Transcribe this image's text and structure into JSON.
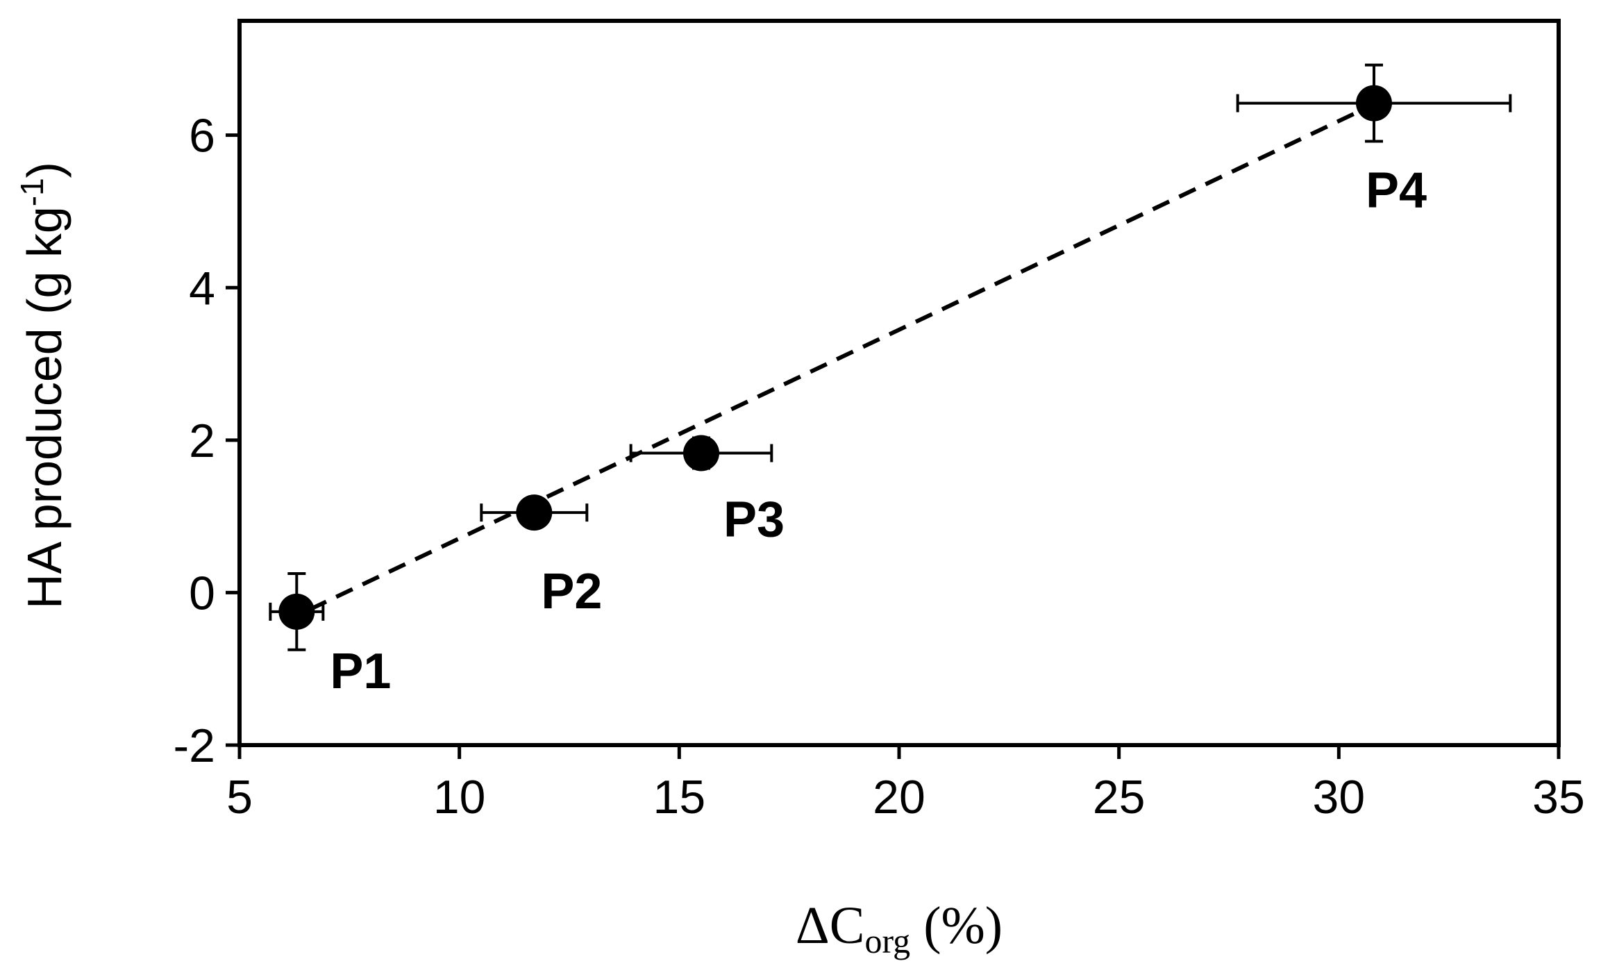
{
  "chart_data": {
    "type": "scatter",
    "xlabel": {
      "prefix": "ΔC",
      "sub": "org",
      "suffix": " (%)"
    },
    "ylabel": {
      "main": "HA produced (g kg",
      "sup": "-1",
      "end": ")"
    },
    "xlim": [
      5,
      35
    ],
    "ylim": [
      -2,
      7.5
    ],
    "xticks": [
      5,
      10,
      15,
      20,
      25,
      30,
      35
    ],
    "yticks": [
      -2,
      0,
      2,
      4,
      6
    ],
    "xtick_labels": [
      "5",
      "10",
      "15",
      "20",
      "25",
      "30",
      "35"
    ],
    "ytick_labels": [
      "-2",
      "0",
      "2",
      "4",
      "6"
    ],
    "grid": false,
    "points": [
      {
        "label": "P1",
        "x": 6.3,
        "y": -0.25,
        "xerr": 0.6,
        "yerr": 0.5
      },
      {
        "label": "P2",
        "x": 11.7,
        "y": 1.05,
        "xerr": 1.2,
        "yerr": 0.0
      },
      {
        "label": "P3",
        "x": 15.5,
        "y": 1.83,
        "xerr": 1.6,
        "yerr": 0.2
      },
      {
        "label": "P4",
        "x": 30.8,
        "y": 6.42,
        "xerr": 3.1,
        "yerr": 0.5
      }
    ],
    "trendline": {
      "style": "dashed",
      "from": [
        6.6,
        -0.22
      ],
      "to": [
        30.6,
        6.35
      ]
    },
    "colors": {
      "marker": "#000000",
      "axis": "#000000"
    }
  }
}
